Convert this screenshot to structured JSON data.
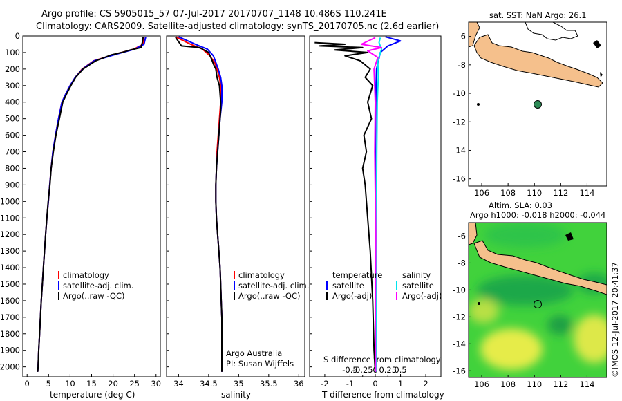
{
  "header": {
    "line1": "Argo profile: CS 5905015_57 07-Jul-2017 20170707_1148 10.486S 110.241E",
    "line2": "Climatology: CARS2009. Satellite-adjusted climatology: synTS_20170705.nc (2.6d earlier)"
  },
  "colors": {
    "climatology": "#ff0000",
    "satellite": "#0000ff",
    "argo": "#000000",
    "salinity_satellite": "#00e5ee",
    "salinity_argo": "#ff00ff",
    "land": "#f5c08c",
    "float_marker": "#2e8b57"
  },
  "chart_data": [
    {
      "type": "line",
      "panel": "temperature",
      "xlabel": "temperature (deg C)",
      "ylabel": "",
      "xlim": [
        -1,
        31
      ],
      "ylim": [
        2060,
        0
      ],
      "xticks": [
        0,
        5,
        10,
        15,
        20,
        25,
        30
      ],
      "yticks": [
        0,
        100,
        200,
        300,
        400,
        500,
        600,
        700,
        800,
        900,
        1000,
        1100,
        1200,
        1300,
        1400,
        1500,
        1600,
        1700,
        1800,
        1900,
        2000
      ],
      "legend": [
        "climatology",
        "satellite-adj. clim.",
        "Argo(..raw -QC)"
      ],
      "series": [
        {
          "name": "climatology",
          "color": "#ff0000",
          "x": [
            27.2,
            27.0,
            24.8,
            20.5,
            15.5,
            12.8,
            11.2,
            10.0,
            9.0,
            8.1,
            7.3,
            6.6,
            6.0,
            5.6,
            5.25,
            4.95,
            4.6,
            4.3,
            4.05,
            3.8,
            3.55,
            3.3,
            3.1,
            2.9,
            2.7,
            2.55,
            2.45
          ],
          "y": [
            5,
            50,
            80,
            110,
            150,
            200,
            250,
            300,
            350,
            400,
            500,
            600,
            700,
            800,
            900,
            1000,
            1100,
            1200,
            1300,
            1400,
            1500,
            1600,
            1700,
            1800,
            1900,
            2000,
            2030
          ]
        },
        {
          "name": "satellite-adj. clim.",
          "color": "#0000ff",
          "x": [
            27.6,
            27.2,
            25.0,
            20.8,
            15.6,
            12.9,
            11.2,
            10.0,
            9.0,
            8.1,
            7.3,
            6.6,
            6.0,
            5.6,
            5.25,
            4.95,
            4.6,
            4.3,
            4.05,
            3.8,
            3.55,
            3.3,
            3.1,
            2.9,
            2.7,
            2.55,
            2.45
          ],
          "y": [
            5,
            50,
            80,
            110,
            150,
            200,
            250,
            300,
            350,
            400,
            500,
            600,
            700,
            800,
            900,
            1000,
            1100,
            1200,
            1300,
            1400,
            1500,
            1600,
            1700,
            1800,
            1900,
            2000,
            2030
          ]
        },
        {
          "name": "Argo(..raw -QC)",
          "color": "#000000",
          "x": [
            27.0,
            26.8,
            26.5,
            24.0,
            22.0,
            19.5,
            16.0,
            13.0,
            11.3,
            10.2,
            9.2,
            8.3,
            7.5,
            6.7,
            6.1,
            5.6,
            5.3,
            4.9,
            4.6,
            4.3,
            4.05,
            3.8,
            3.55,
            3.3,
            3.1,
            2.9,
            2.7,
            2.55,
            2.45
          ],
          "y": [
            8,
            40,
            70,
            85,
            100,
            115,
            150,
            200,
            250,
            300,
            350,
            400,
            500,
            600,
            700,
            800,
            900,
            1000,
            1100,
            1200,
            1300,
            1400,
            1500,
            1600,
            1700,
            1800,
            1900,
            2000,
            2030
          ]
        }
      ]
    },
    {
      "type": "line",
      "panel": "salinity",
      "xlabel": "salinity",
      "xlim": [
        33.8,
        36.1
      ],
      "ylim": [
        2060,
        0
      ],
      "xticks": [
        34,
        34.5,
        35,
        35.5,
        36
      ],
      "legend": [
        "climatology",
        "satellite-adj. clim.",
        "Argo(..raw -QC)"
      ],
      "annotations": [
        "Argo Australia",
        "PI: Susan Wijffels"
      ],
      "series": [
        {
          "name": "climatology",
          "color": "#ff0000",
          "x": [
            33.95,
            34.2,
            34.4,
            34.52,
            34.6,
            34.64,
            34.68,
            34.7,
            34.7,
            34.68,
            34.66,
            34.64,
            34.63,
            34.62,
            34.62,
            34.63,
            34.65,
            34.67,
            34.69,
            34.7,
            34.71,
            34.72,
            34.72,
            34.72,
            34.72
          ],
          "y": [
            5,
            50,
            80,
            120,
            160,
            200,
            250,
            300,
            400,
            500,
            600,
            700,
            800,
            900,
            1000,
            1100,
            1200,
            1300,
            1400,
            1500,
            1600,
            1700,
            1800,
            1900,
            2030
          ]
        },
        {
          "name": "satellite-adj. clim.",
          "color": "#0000ff",
          "x": [
            34.0,
            34.28,
            34.48,
            34.58,
            34.62,
            34.66,
            34.7,
            34.72,
            34.72,
            34.69,
            34.67,
            34.65,
            34.63,
            34.62,
            34.62,
            34.63,
            34.65,
            34.67,
            34.69,
            34.7,
            34.71,
            34.72,
            34.72,
            34.72,
            34.72
          ],
          "y": [
            5,
            50,
            80,
            120,
            160,
            200,
            250,
            300,
            400,
            500,
            600,
            700,
            800,
            900,
            1000,
            1100,
            1200,
            1300,
            1400,
            1500,
            1600,
            1700,
            1800,
            1900,
            2030
          ]
        },
        {
          "name": "Argo(..raw -QC)",
          "color": "#000000",
          "x": [
            33.95,
            34.05,
            34.35,
            34.5,
            34.55,
            34.58,
            34.62,
            34.64,
            34.68,
            34.7,
            34.7,
            34.69,
            34.67,
            34.65,
            34.63,
            34.62,
            34.62,
            34.63,
            34.65,
            34.67,
            34.69,
            34.7,
            34.71,
            34.72,
            34.72,
            34.72
          ],
          "y": [
            8,
            60,
            70,
            100,
            140,
            170,
            200,
            250,
            300,
            400,
            450,
            500,
            600,
            700,
            800,
            900,
            1000,
            1100,
            1200,
            1300,
            1400,
            1500,
            1600,
            1700,
            1800,
            2030
          ]
        }
      ]
    },
    {
      "type": "line",
      "panel": "difference",
      "xlabel": "T difference from climatology",
      "xlabel_top": "S difference from climatology",
      "xlim": [
        -2.6,
        2.6
      ],
      "xticks": [
        -2,
        -1,
        0,
        1,
        2
      ],
      "s_xticks": [
        -0.5,
        -0.25,
        0,
        0.25,
        0.5
      ],
      "s_xtick_labels": [
        "-0.5",
        "-0.25",
        "0",
        "0.25",
        "0.5"
      ],
      "ylim": [
        2060,
        0
      ],
      "legend_left_title": "temperature",
      "legend_right_title": "salinity",
      "legend": [
        "satellite",
        "Argo(-adj)",
        "satellite",
        "Argo(-adj)"
      ],
      "series": [
        {
          "name": "T satellite",
          "color": "#0000ff",
          "x": [
            0.4,
            1.0,
            0.5,
            0.2,
            0.05,
            0.03,
            0.01,
            0.0,
            0.0,
            0.0,
            0.0
          ],
          "y": [
            5,
            30,
            60,
            100,
            200,
            300,
            500,
            800,
            1200,
            1600,
            2030
          ]
        },
        {
          "name": "T Argo(-adj)",
          "color": "#000000",
          "x": [
            -2.4,
            -1.2,
            -2.2,
            -0.5,
            -1.6,
            -0.3,
            -1.2,
            -0.6,
            -0.2,
            -0.4,
            -0.1,
            -0.3,
            -0.15,
            -0.45,
            -0.35,
            -0.5,
            -0.4,
            -0.3,
            -0.2,
            -0.1,
            -0.05,
            0.0
          ],
          "y": [
            40,
            50,
            60,
            70,
            85,
            100,
            120,
            150,
            200,
            250,
            300,
            400,
            500,
            600,
            700,
            800,
            900,
            1100,
            1300,
            1600,
            1900,
            2030
          ]
        },
        {
          "name": "S satellite",
          "color": "#00e5ee",
          "x": [
            0.2,
            0.15,
            0.25,
            0.1,
            0.12,
            0.08,
            0.06,
            0.05,
            0.05,
            0.04,
            0.03
          ],
          "y": [
            10,
            40,
            80,
            150,
            250,
            400,
            700,
            1000,
            1400,
            1800,
            2030
          ]
        },
        {
          "name": "S Argo(-adj)",
          "color": "#ff00ff",
          "x": [
            0.0,
            -0.55,
            0.25,
            -0.3,
            0.1,
            -0.05,
            0.0,
            -0.02,
            0.02,
            0.0,
            0.01
          ],
          "y": [
            10,
            50,
            70,
            90,
            130,
            200,
            400,
            700,
            1200,
            1700,
            2030
          ]
        }
      ]
    },
    {
      "type": "map",
      "panel": "map-sst",
      "title": "sat. SST: NaN Argo: 26.1",
      "lon_range": [
        105,
        115.5
      ],
      "lat_range": [
        -16.5,
        -5
      ],
      "xticks": [
        106,
        108,
        110,
        112,
        114
      ],
      "yticks": [
        -6,
        -8,
        -10,
        -12,
        -14,
        -16
      ],
      "float_position": [
        110.241,
        -10.486
      ]
    },
    {
      "type": "map",
      "panel": "map-sla",
      "title_line1": "Altim. SLA: 0.03",
      "title_line2": "Argo h1000: -0.018 h2000: -0.044",
      "lon_range": [
        105,
        115.5
      ],
      "lat_range": [
        -16.5,
        -5
      ],
      "xticks": [
        106,
        108,
        110,
        112,
        114
      ],
      "yticks": [
        -6,
        -8,
        -10,
        -12,
        -14,
        -16
      ],
      "float_position": [
        110.241,
        -10.486
      ],
      "credit": "©IMOS 12-Jul-2017 20:41:37"
    }
  ]
}
